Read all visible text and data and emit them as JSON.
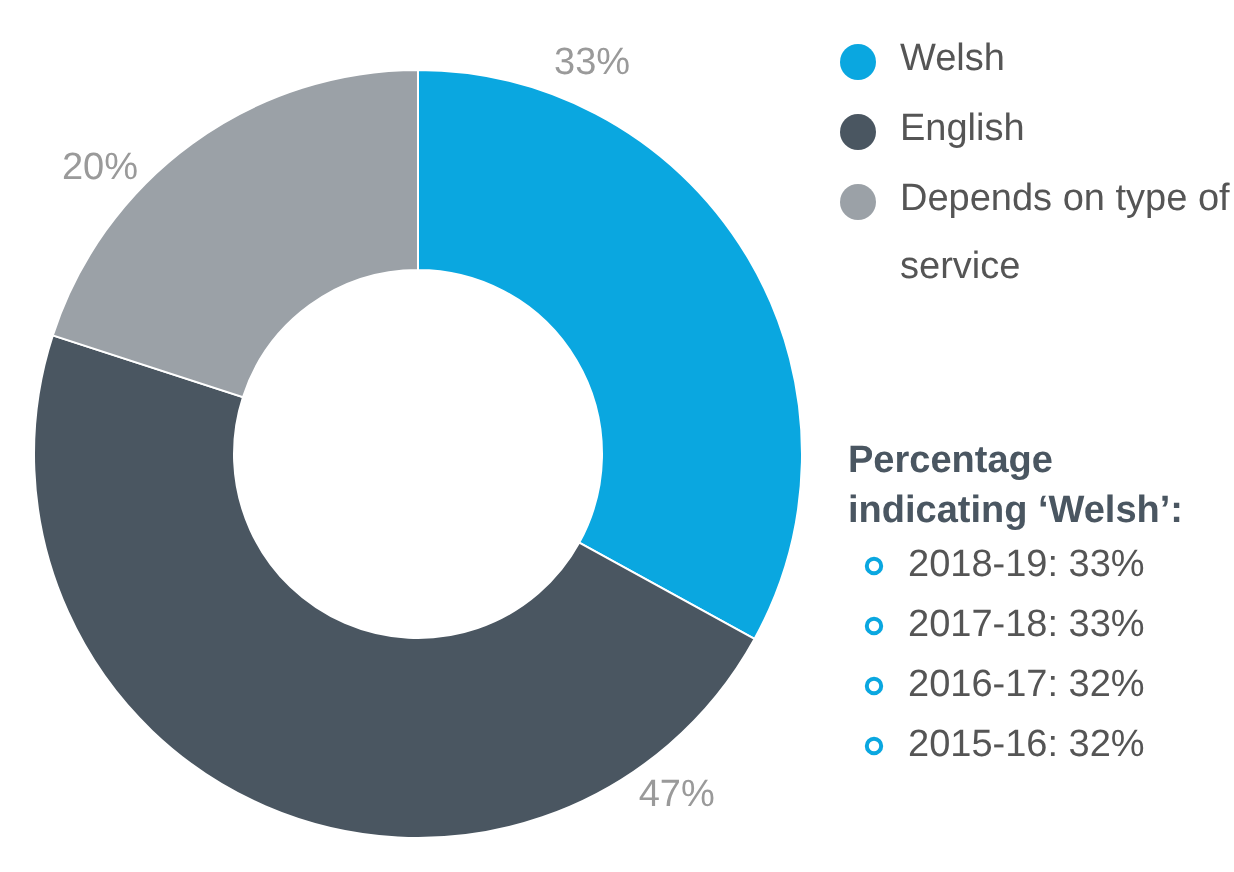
{
  "chart_data": {
    "type": "donut",
    "categories": [
      "Welsh",
      "English",
      "Depends on type of service"
    ],
    "values": [
      33,
      47,
      20
    ],
    "colors": [
      "#0aa7e0",
      "#4a5661",
      "#9ba1a7"
    ],
    "value_labels": [
      "33%",
      "47%",
      "20%"
    ],
    "legend": "right",
    "annotations": [
      "Percentage indicating ‘Welsh’:",
      "2018-19: 33%",
      "2017-18: 33%",
      "2016-17: 32%",
      "2015-16: 32%"
    ]
  }
}
